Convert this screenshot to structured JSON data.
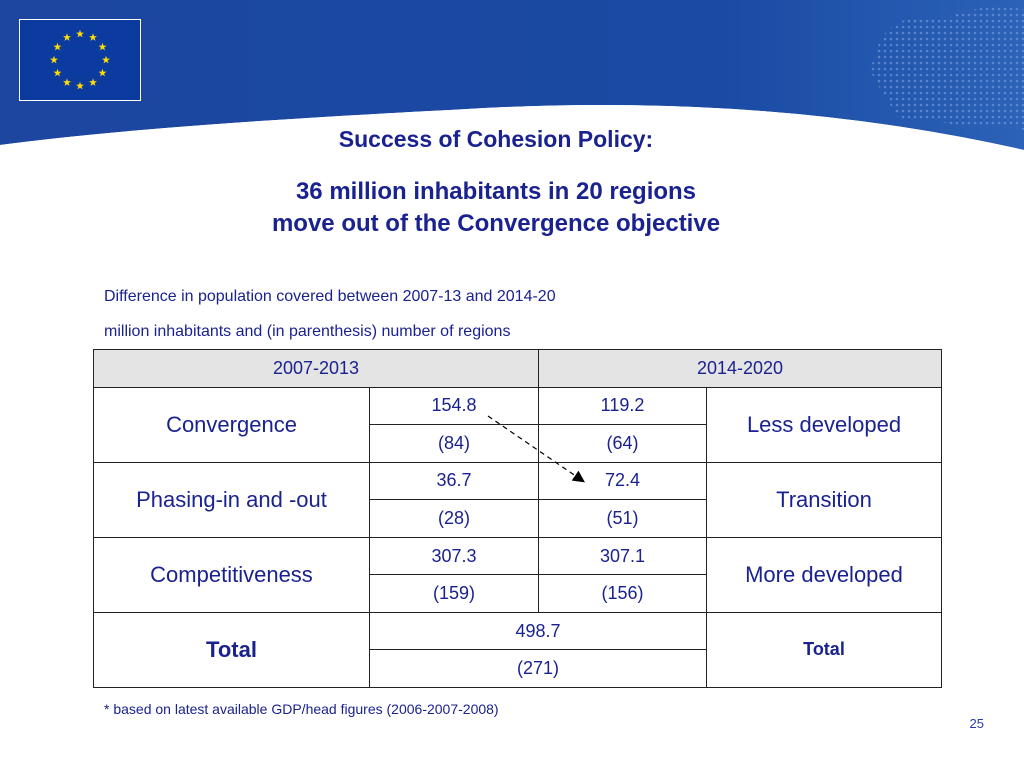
{
  "header": {
    "brand_color": "#1a47a0",
    "flag_color": "#0b3b9f",
    "star_color": "#ffdd00"
  },
  "title": {
    "line1": "Success of Cohesion Policy:",
    "line2": "36 million inhabitants in 20 regions",
    "line3": "move out of the Convergence objective"
  },
  "subtitle": {
    "line1": "Difference in population covered between 2007-13 and 2014-20",
    "line2": "million inhabitants and (in parenthesis) number of regions"
  },
  "table": {
    "header": [
      "2007-2013",
      "2014-2020"
    ],
    "rows": [
      {
        "left": "Convergence",
        "v1": "154.8",
        "v2": "119.2",
        "n1": "(84)",
        "n2": "(64)",
        "right": "Less developed"
      },
      {
        "left": "Phasing-in and -out",
        "v1": "36.7",
        "v2": "72.4",
        "n1": "(28)",
        "n2": "(51)",
        "right": "Transition"
      },
      {
        "left": "Competitiveness",
        "v1": "307.3",
        "v2": "307.1",
        "n1": "(159)",
        "n2": "(156)",
        "right": "More developed"
      }
    ],
    "total": {
      "left": "Total",
      "value": "498.7",
      "count": "(271)",
      "right": "Total"
    }
  },
  "footnote": "* based on latest available GDP/head figures (2006-2007-2008)",
  "page_number": "25"
}
